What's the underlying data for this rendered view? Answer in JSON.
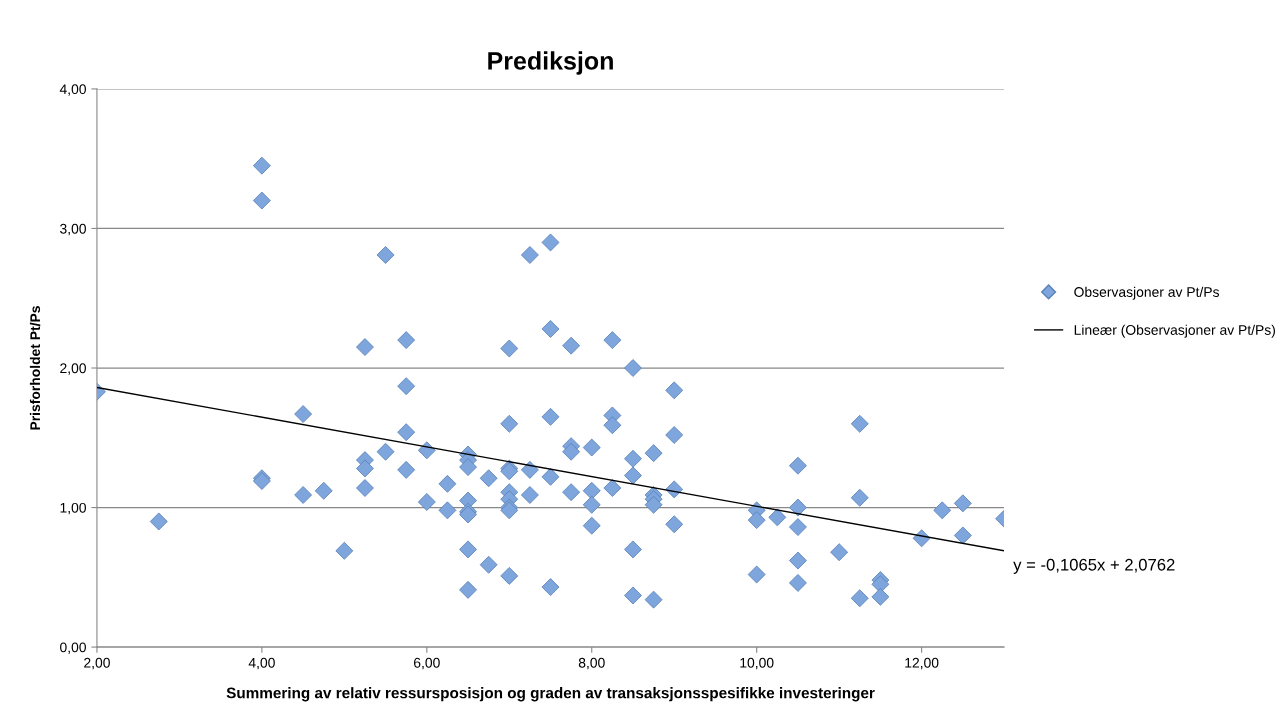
{
  "chart_data": {
    "type": "scatter",
    "title": "Prediksjon",
    "xlabel": "Summering av relativ ressursposisjon og graden av transaksjonsspesifikke investeringer",
    "ylabel": "Prisforholdet Pt/Ps",
    "xlim": [
      2,
      13
    ],
    "ylim": [
      0,
      4
    ],
    "xticks": [
      {
        "value": 2,
        "label": "2,00"
      },
      {
        "value": 4,
        "label": "4,00"
      },
      {
        "value": 6,
        "label": "6,00"
      },
      {
        "value": 8,
        "label": "8,00"
      },
      {
        "value": 10,
        "label": "10,00"
      },
      {
        "value": 12,
        "label": "12,00"
      }
    ],
    "yticks": [
      {
        "value": 0,
        "label": "0,00"
      },
      {
        "value": 1,
        "label": "1,00"
      },
      {
        "value": 2,
        "label": "2,00"
      },
      {
        "value": 3,
        "label": "3,00"
      },
      {
        "value": 4,
        "label": "4,00"
      }
    ],
    "grid": "y",
    "legend": "right",
    "marker": "diamond",
    "annotations": [
      "y = -0,1065x + 2,0762"
    ],
    "series": [
      {
        "name": "Observasjoner av Pt/Ps",
        "color": "#7ea6dc",
        "x": [
          2,
          2.75,
          4,
          4,
          4,
          4,
          4.5,
          4.5,
          4.75,
          5,
          5.25,
          5.25,
          5.25,
          5.25,
          5.5,
          5.5,
          5.75,
          5.75,
          5.75,
          5.75,
          6,
          6,
          6.25,
          6.25,
          6.5,
          6.5,
          6.5,
          6.5,
          6.5,
          6.5,
          6.5,
          6.5,
          6.75,
          6.75,
          7,
          7,
          7,
          7,
          7,
          7,
          7,
          7,
          7,
          7.25,
          7.25,
          7.25,
          7.5,
          7.5,
          7.5,
          7.5,
          7.5,
          7.75,
          7.75,
          7.75,
          7.75,
          8,
          8,
          8,
          8,
          8.25,
          8.25,
          8.25,
          8.25,
          8.5,
          8.5,
          8.5,
          8.5,
          8.5,
          8.75,
          8.75,
          8.75,
          8.75,
          8.75,
          9,
          9,
          9,
          9,
          10,
          10,
          10,
          10.25,
          10.5,
          10.5,
          10.5,
          10.5,
          10.5,
          11,
          11.25,
          11.25,
          11.25,
          11.5,
          11.5,
          11.5,
          12,
          12.25,
          12.5,
          12.5,
          13
        ],
        "values": [
          1.83,
          0.9,
          3.45,
          3.2,
          1.21,
          1.19,
          1.67,
          1.09,
          1.12,
          0.69,
          2.15,
          1.34,
          1.28,
          1.14,
          2.81,
          1.4,
          2.2,
          1.87,
          1.54,
          1.27,
          1.41,
          1.04,
          1.17,
          0.98,
          1.38,
          1.34,
          1.29,
          1.05,
          0.97,
          0.95,
          0.7,
          0.41,
          1.21,
          0.59,
          2.14,
          1.6,
          1.28,
          1.26,
          1.11,
          1.06,
          1.0,
          0.98,
          0.51,
          2.81,
          1.27,
          1.09,
          2.9,
          2.28,
          1.65,
          1.22,
          0.43,
          2.16,
          1.44,
          1.4,
          1.11,
          1.43,
          1.12,
          1.02,
          0.87,
          2.2,
          1.66,
          1.59,
          1.14,
          2.0,
          1.35,
          1.23,
          0.7,
          0.37,
          1.39,
          1.09,
          1.06,
          1.02,
          0.34,
          1.84,
          1.52,
          1.13,
          0.88,
          0.98,
          0.91,
          0.52,
          0.93,
          1.3,
          1.0,
          0.86,
          0.62,
          0.46,
          0.68,
          1.6,
          1.07,
          0.35,
          0.48,
          0.45,
          0.36,
          0.78,
          0.98,
          1.03,
          0.8,
          0.92
        ]
      },
      {
        "name": "Lineær (Observasjoner av Pt/Ps)",
        "type": "line",
        "color": "#000000",
        "marker": "none",
        "line_style": "solid",
        "x": [
          2,
          13
        ],
        "values": [
          1.86,
          0.69
        ]
      }
    ]
  }
}
